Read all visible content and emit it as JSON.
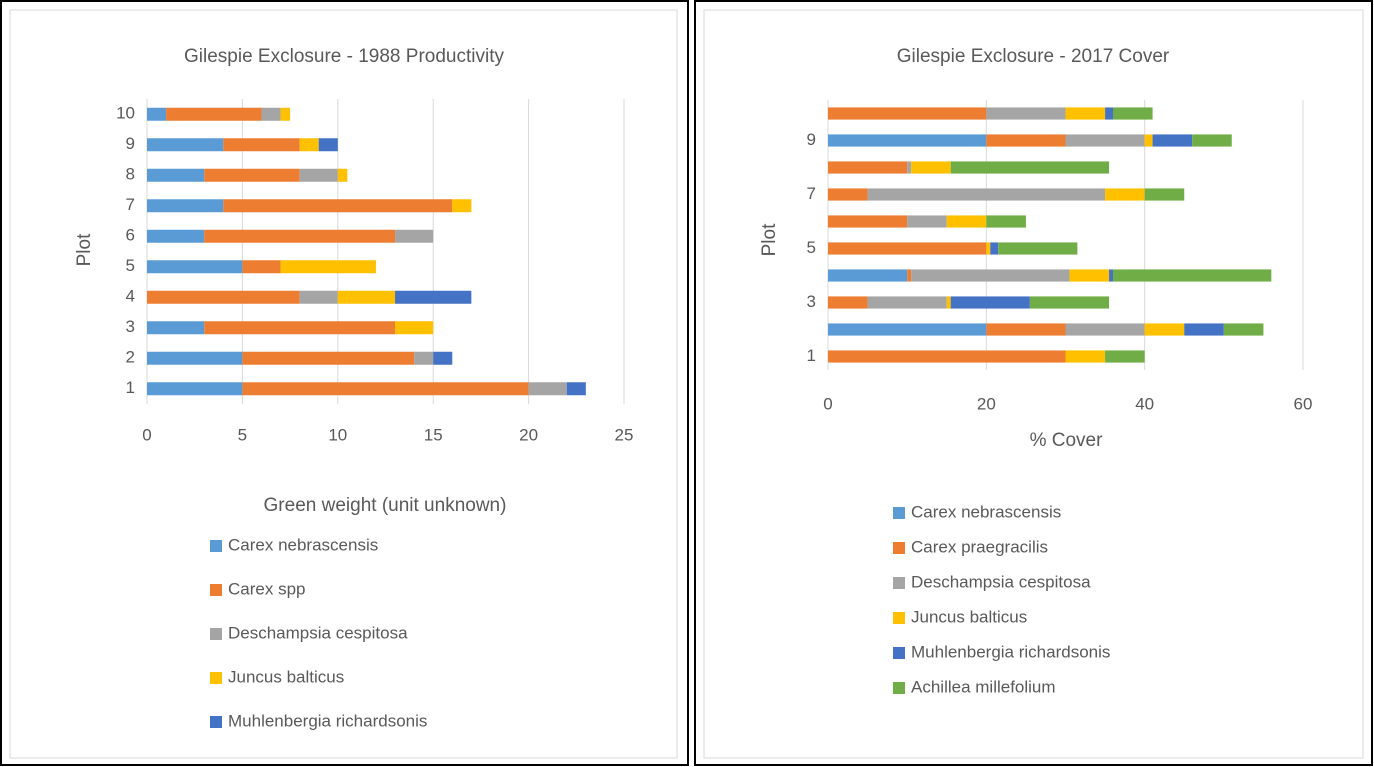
{
  "chart_data": [
    {
      "type": "barh-stacked",
      "title": "Gilespie Exclosure - 1988 Productivity",
      "x_label": "Green weight (unit unknown)",
      "y_label": "Plot",
      "categories": [
        "1",
        "2",
        "3",
        "4",
        "5",
        "6",
        "7",
        "8",
        "9",
        "10"
      ],
      "series": [
        {
          "name": "Carex nebrascensis",
          "color": "#5b9bd5",
          "values": [
            5,
            5,
            3,
            0,
            5,
            3,
            4,
            3,
            4,
            1
          ]
        },
        {
          "name": "Carex spp",
          "color": "#ed7d31",
          "values": [
            15,
            9,
            10,
            8,
            2,
            10,
            12,
            5,
            4,
            5
          ]
        },
        {
          "name": "Deschampsia cespitosa",
          "color": "#a5a5a5",
          "values": [
            2,
            1,
            0,
            2,
            0,
            2,
            0,
            2,
            0,
            1
          ]
        },
        {
          "name": "Juncus balticus",
          "color": "#ffc000",
          "values": [
            0,
            0,
            2,
            3,
            5,
            0,
            1,
            0.5,
            1,
            0.5
          ]
        },
        {
          "name": "Muhlenbergia richardsonis",
          "color": "#4472c4",
          "values": [
            1,
            1,
            0,
            4,
            0,
            0,
            0,
            0,
            1,
            0
          ]
        }
      ],
      "xlim": [
        0,
        25
      ],
      "xticks": [
        0,
        5,
        10,
        15,
        20,
        25
      ],
      "grid": true
    },
    {
      "type": "barh-stacked",
      "title": "Gilespie Exclosure - 2017 Cover",
      "x_label": "% Cover",
      "y_label": "Plot",
      "categories": [
        "1",
        null,
        "3",
        null,
        "5",
        null,
        "7",
        null,
        "9",
        null
      ],
      "series": [
        {
          "name": "Carex nebrascensis",
          "color": "#5b9bd5",
          "values": [
            0,
            20,
            0,
            10,
            0,
            0,
            0,
            0,
            20,
            0
          ]
        },
        {
          "name": "Carex praegracilis",
          "color": "#ed7d31",
          "values": [
            30,
            10,
            5,
            0.5,
            20,
            10,
            5,
            10,
            10,
            20
          ]
        },
        {
          "name": "Deschampsia cespitosa",
          "color": "#a5a5a5",
          "values": [
            0,
            10,
            10,
            20,
            0,
            5,
            30,
            0.5,
            10,
            10
          ]
        },
        {
          "name": "Juncus balticus",
          "color": "#ffc000",
          "values": [
            5,
            5,
            0.5,
            5,
            0.5,
            5,
            5,
            5,
            1,
            5
          ]
        },
        {
          "name": "Muhlenbergia richardsonis",
          "color": "#4472c4",
          "values": [
            0,
            5,
            10,
            0.5,
            1,
            0,
            0,
            0,
            5,
            1
          ]
        },
        {
          "name": "Achillea millefolium",
          "color": "#70ad47",
          "values": [
            5,
            5,
            10,
            20,
            10,
            5,
            5,
            20,
            5,
            5
          ]
        }
      ],
      "xlim": [
        0,
        60
      ],
      "xticks": [
        0,
        20,
        40,
        60
      ],
      "grid": true
    }
  ]
}
